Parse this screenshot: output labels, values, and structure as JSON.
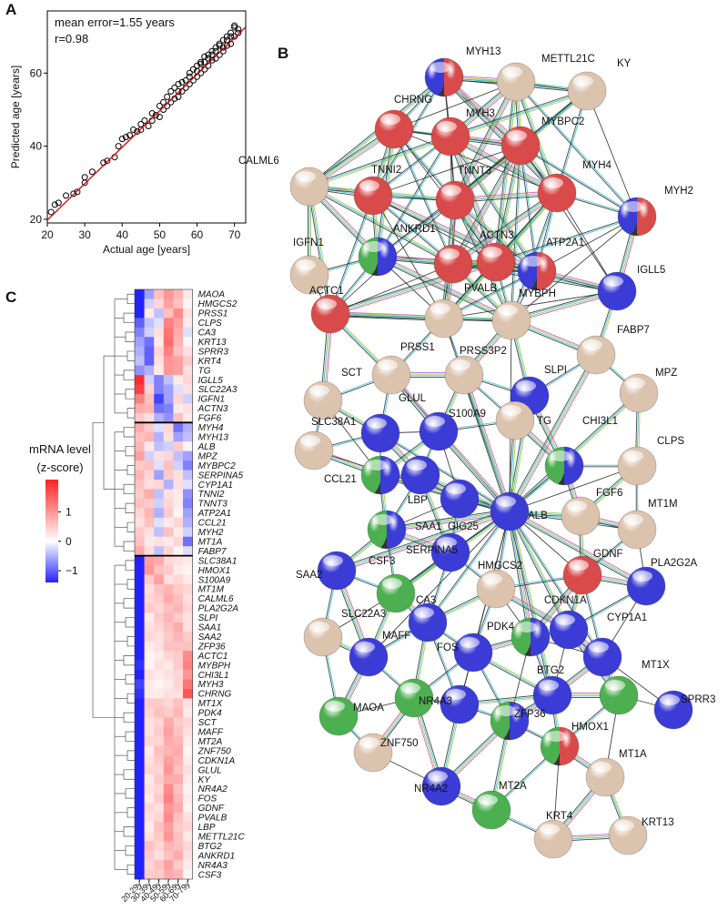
{
  "panel_labels": [
    "A",
    "B",
    "C"
  ],
  "chart_data": [
    {
      "type": "scatter",
      "x_label": "Actual age [years]",
      "y_label": "Predicted age [years]",
      "annotations": [
        "mean error=1.55 years",
        "r=0.98"
      ],
      "x": [
        21,
        22,
        23,
        25,
        27,
        28,
        30,
        30,
        32,
        35,
        36,
        38,
        39,
        40,
        41,
        42,
        43,
        44,
        45,
        45,
        46,
        47,
        48,
        48,
        49,
        50,
        50,
        51,
        51,
        52,
        52,
        53,
        53,
        54,
        54,
        55,
        55,
        55,
        56,
        56,
        57,
        57,
        58,
        58,
        58,
        59,
        59,
        60,
        60,
        60,
        61,
        61,
        61,
        62,
        62,
        62,
        63,
        63,
        63,
        64,
        64,
        64,
        65,
        65,
        65,
        66,
        66,
        66,
        67,
        67,
        67,
        68,
        68,
        68,
        69,
        69,
        69,
        70,
        70,
        70,
        71,
        71
      ],
      "y": [
        22,
        24,
        24.5,
        26.5,
        27,
        27.5,
        30,
        31.5,
        33,
        35.5,
        36,
        37,
        40,
        42,
        42.5,
        43,
        44.5,
        44,
        44.5,
        46,
        47,
        45.5,
        47,
        49,
        48.5,
        51,
        48,
        52,
        50,
        53.5,
        51,
        52,
        55,
        56,
        53,
        55,
        57,
        53.5,
        57.5,
        55,
        58,
        56,
        60,
        57,
        59,
        61,
        58,
        62,
        59,
        60.5,
        62.5,
        60,
        63,
        63,
        61,
        64.5,
        64,
        62,
        65,
        66,
        63.5,
        65,
        67,
        64,
        66,
        67.5,
        65,
        68,
        67,
        69,
        66,
        69,
        67.5,
        70,
        70,
        68,
        71,
        73,
        72.5,
        70,
        71,
        72
      ],
      "color": "#000000",
      "fit_line": {
        "x": [
          20,
          73
        ],
        "y": [
          19.8,
          72.6
        ],
        "color": "#e00000"
      },
      "xlim": [
        20,
        73
      ],
      "ylim": [
        19,
        77
      ],
      "xticks": [
        20,
        30,
        40,
        50,
        60,
        70
      ],
      "yticks": [
        20,
        40,
        60
      ]
    },
    {
      "type": "heatmap",
      "columns": [
        "20-29y",
        "30-39y",
        "40-49y",
        "50-59y",
        "60-69y",
        "70-79y"
      ],
      "rows": [
        "MAOA",
        "HMGCS2",
        "PRSS1",
        "CLPS",
        "CA3",
        "KRT13",
        "SPRR3",
        "KRT4",
        "TG",
        "IGLL5",
        "SLC22A3",
        "IGFN1",
        "ACTN3",
        "FGF6",
        "MYH4",
        "MYH13",
        "ALB",
        "MPZ",
        "MYBPC2",
        "SERPINA5",
        "CYP1A1",
        "TNNI2",
        "TNNT3",
        "ATP2A1",
        "CCL21",
        "MYH2",
        "MT1A",
        "FABP7",
        "SLC38A1",
        "HMOX1",
        "S100A9",
        "MT1M",
        "CALML6",
        "PLA2G2A",
        "SLPI",
        "SAA1",
        "SAA2",
        "ZFP36",
        "ACTC1",
        "MYBPH",
        "CHI3L1",
        "MYH3",
        "CHRNG",
        "MT1X",
        "PDK4",
        "SCT",
        "MAFF",
        "MT2A",
        "ZNF750",
        "CDKN1A",
        "GLUL",
        "KY",
        "NR4A2",
        "FOS",
        "GDNF",
        "PVALB",
        "LBP",
        "METTL21C",
        "BTG2",
        "ANKRD1",
        "NR4A3",
        "CSF3"
      ],
      "values": [
        [
          -1.6,
          -0.6,
          0.6,
          1.0,
          0.7,
          0.2
        ],
        [
          -1.5,
          -0.3,
          0.4,
          0.9,
          0.6,
          0.1
        ],
        [
          -1.7,
          0.2,
          -0.4,
          0.6,
          1.1,
          0.3
        ],
        [
          -1.0,
          -0.4,
          -0.2,
          1.2,
          0.9,
          0.2
        ],
        [
          -0.8,
          -0.3,
          0.3,
          1.3,
          0.8,
          -0.2
        ],
        [
          -0.6,
          -0.9,
          0.2,
          1.4,
          0.7,
          0.1
        ],
        [
          -0.5,
          -1.0,
          0.4,
          1.2,
          0.6,
          0.3
        ],
        [
          -0.4,
          -1.0,
          0.3,
          1.0,
          0.9,
          0.5
        ],
        [
          -0.7,
          -0.5,
          0.2,
          1.0,
          0.9,
          0.3
        ],
        [
          2.0,
          -0.3,
          -0.8,
          -0.4,
          0.2,
          0.4
        ],
        [
          1.8,
          0.4,
          -0.8,
          -0.6,
          -0.2,
          0.3
        ],
        [
          1.2,
          0.6,
          -1.2,
          -0.6,
          0.4,
          -0.3
        ],
        [
          0.8,
          0.7,
          -0.9,
          -0.8,
          0.2,
          0.3
        ],
        [
          0.5,
          0.3,
          -0.5,
          -0.7,
          0.6,
          0.2
        ],
        [
          0.8,
          0.5,
          -0.2,
          0.4,
          -0.9,
          -0.5
        ],
        [
          0.6,
          0.7,
          -0.5,
          0.3,
          -0.6,
          -0.4
        ],
        [
          0.7,
          0.2,
          -0.4,
          -0.3,
          0.5,
          0.1
        ],
        [
          0.9,
          -0.3,
          0.3,
          0.4,
          -0.4,
          -0.6
        ],
        [
          0.5,
          0.6,
          -0.2,
          0.6,
          -0.3,
          -0.8
        ],
        [
          0.7,
          0.4,
          -0.6,
          0.5,
          0.3,
          -0.4
        ],
        [
          0.6,
          0.3,
          0.4,
          -0.5,
          0.3,
          -0.2
        ],
        [
          0.5,
          0.8,
          -0.4,
          0.3,
          0.2,
          -0.7
        ],
        [
          0.6,
          0.5,
          -0.3,
          0.4,
          0.2,
          -0.8
        ],
        [
          0.4,
          0.7,
          -0.5,
          0.5,
          0.1,
          -0.6
        ],
        [
          0.3,
          0.6,
          -0.2,
          0.2,
          0.4,
          -0.5
        ],
        [
          0.5,
          0.3,
          -0.4,
          0.6,
          0.2,
          -0.3
        ],
        [
          0.6,
          0.2,
          0.3,
          0.2,
          0.4,
          -0.9
        ],
        [
          0.8,
          0.3,
          -0.4,
          0.4,
          0.1,
          -0.2
        ],
        [
          -1.8,
          0.9,
          0.8,
          0.4,
          0.3,
          0.2
        ],
        [
          -1.7,
          1.0,
          0.6,
          0.5,
          0.2,
          0.1
        ],
        [
          -1.5,
          0.5,
          0.9,
          0.3,
          0.4,
          0.2
        ],
        [
          -1.6,
          0.3,
          0.6,
          0.7,
          0.5,
          0.4
        ],
        [
          -1.7,
          0.4,
          0.5,
          0.8,
          0.6,
          0.3
        ],
        [
          -1.6,
          0.5,
          0.4,
          0.6,
          0.7,
          0.4
        ],
        [
          -1.4,
          0.2,
          0.5,
          0.7,
          0.5,
          0.3
        ],
        [
          -1.5,
          0.3,
          0.4,
          0.6,
          0.8,
          0.3
        ],
        [
          -1.5,
          0.4,
          0.3,
          0.5,
          0.7,
          0.5
        ],
        [
          -1.6,
          0.2,
          0.3,
          0.6,
          0.6,
          0.6
        ],
        [
          -1.4,
          0.1,
          0.2,
          0.4,
          0.5,
          1.1
        ],
        [
          -1.3,
          0.1,
          0.3,
          0.2,
          0.5,
          1.2
        ],
        [
          -1.5,
          0.3,
          0.2,
          0.3,
          0.4,
          1.0
        ],
        [
          -1.2,
          0.2,
          0.1,
          0.2,
          0.4,
          1.3
        ],
        [
          -1.3,
          0.2,
          0.2,
          0.3,
          0.3,
          1.6
        ],
        [
          -1.7,
          0.5,
          0.5,
          0.4,
          0.6,
          0.3
        ],
        [
          -1.6,
          0.4,
          0.6,
          0.5,
          0.7,
          0.2
        ],
        [
          -1.5,
          0.3,
          0.4,
          0.8,
          0.5,
          0.4
        ],
        [
          -1.6,
          0.3,
          0.5,
          0.9,
          0.6,
          0.3
        ],
        [
          -1.5,
          0.4,
          0.4,
          0.8,
          0.7,
          0.2
        ],
        [
          -1.4,
          0.2,
          0.6,
          0.7,
          0.8,
          0.1
        ],
        [
          -1.6,
          0.3,
          0.5,
          0.9,
          0.7,
          0.2
        ],
        [
          -1.5,
          0.4,
          0.4,
          1.0,
          0.6,
          0.3
        ],
        [
          -1.4,
          0.2,
          0.5,
          0.8,
          0.8,
          0.2
        ],
        [
          -1.5,
          0.3,
          0.4,
          1.1,
          0.6,
          0.1
        ],
        [
          -1.6,
          0.2,
          0.5,
          1.2,
          0.7,
          0.2
        ],
        [
          -1.5,
          0.4,
          0.3,
          1.0,
          0.8,
          0.1
        ],
        [
          -1.6,
          0.3,
          0.4,
          1.1,
          0.6,
          0.3
        ],
        [
          -1.4,
          0.2,
          0.6,
          0.9,
          0.5,
          0.4
        ],
        [
          -1.5,
          0.3,
          0.5,
          1.0,
          0.6,
          0.2
        ],
        [
          -1.7,
          0.6,
          0.4,
          0.7,
          0.6,
          0.4
        ],
        [
          -1.6,
          0.5,
          0.3,
          0.6,
          0.8,
          0.3
        ],
        [
          -1.5,
          0.4,
          0.6,
          0.9,
          0.5,
          0.2
        ],
        [
          -1.6,
          0.5,
          0.5,
          0.8,
          0.7,
          0.1
        ]
      ],
      "clim": [
        -1.4,
        2.1
      ],
      "low_color": "#2222ff",
      "mid_color": "#ffffff",
      "high_color": "#ff2222",
      "colorbar_title": [
        "mRNA level",
        "(z-score)"
      ],
      "colorbar_ticks": [
        1,
        0,
        {
          "value": -1,
          "label": "−1"
        }
      ]
    }
  ],
  "network": {
    "nodes": [
      {
        "label": "MYH13",
        "colors": [
          "#3b3bd6",
          "#d94a4a"
        ]
      },
      {
        "label": "METTL21C",
        "colors": [
          "#dcc3ae"
        ]
      },
      {
        "label": "KY",
        "colors": [
          "#dcc3ae"
        ]
      },
      {
        "label": "CHRNG",
        "colors": [
          "#d94a4a"
        ]
      },
      {
        "label": "MYH3",
        "colors": [
          "#d94a4a"
        ]
      },
      {
        "label": "MYBPC2",
        "colors": [
          "#d94a4a"
        ]
      },
      {
        "label": "CALML6",
        "colors": [
          "#dcc3ae"
        ]
      },
      {
        "label": "TNNI2",
        "colors": [
          "#d94a4a"
        ]
      },
      {
        "label": "TNNT3",
        "colors": [
          "#d94a4a"
        ]
      },
      {
        "label": "MYH4",
        "colors": [
          "#d94a4a"
        ]
      },
      {
        "label": "MYH2",
        "colors": [
          "#3b3bd6",
          "#d94a4a"
        ]
      },
      {
        "label": "IGFN1",
        "colors": [
          "#4caf50",
          "#3b3bd6"
        ]
      },
      {
        "label": "ANKRD1",
        "colors": [
          "#d94a4a"
        ]
      },
      {
        "label": "ACTN3",
        "colors": [
          "#d94a4a"
        ]
      },
      {
        "label": "ATP2A1",
        "colors": [
          "#3b3bd6",
          "#d94a4a"
        ]
      },
      {
        "label": "IGLL5",
        "colors": [
          "#3b3bd6"
        ]
      },
      {
        "label": "ACTC1",
        "colors": [
          "#d94a4a"
        ]
      },
      {
        "label": "PVALB",
        "colors": [
          "#dcc3ae"
        ]
      },
      {
        "label": "MYBPH",
        "colors": [
          "#dcc3ae"
        ]
      },
      {
        "label": "FABP7",
        "colors": [
          "#dcc3ae"
        ]
      },
      {
        "label": "MPZ",
        "colors": [
          "#dcc3ae"
        ]
      },
      {
        "label": "SCT",
        "colors": [
          "#dcc3ae"
        ]
      },
      {
        "label": "PRSS1",
        "colors": [
          "#dcc3ae"
        ]
      },
      {
        "label": "PRSS3P2",
        "colors": [
          "#dcc3ae"
        ]
      },
      {
        "label": "SLPI",
        "colors": [
          "#3b3bd6"
        ]
      },
      {
        "label": "SLC38A1",
        "colors": [
          "#3b3bd6"
        ]
      },
      {
        "label": "GLUL",
        "colors": [
          "#dcc3ae"
        ]
      },
      {
        "label": "S100A9",
        "colors": [
          "#3b3bd6"
        ]
      },
      {
        "label": "TG",
        "colors": [
          "#dcc3ae"
        ]
      },
      {
        "label": "CHI3L1",
        "colors": [
          "#4caf50",
          "#3b3bd6"
        ]
      },
      {
        "label": "CLPS",
        "colors": [
          "#dcc3ae"
        ]
      },
      {
        "label": "CCL21",
        "colors": [
          "#4caf50",
          "#3b3bd6"
        ]
      },
      {
        "label": "LBP",
        "colors": [
          "#3b3bd6"
        ]
      },
      {
        "label": "GIG25",
        "colors": [
          "#3b3bd6"
        ]
      },
      {
        "label": "ALB",
        "colors": [
          "#3b3bd6"
        ]
      },
      {
        "label": "SAA1",
        "colors": [
          "#4caf50",
          "#3b3bd6"
        ]
      },
      {
        "label": "FGF6",
        "colors": [
          "#dcc3ae"
        ]
      },
      {
        "label": "MT1M",
        "colors": [
          "#dcc3ae"
        ]
      },
      {
        "label": "SERPINA5",
        "colors": [
          "#3b3bd6"
        ]
      },
      {
        "label": "SAA2",
        "colors": [
          "#3b3bd6"
        ]
      },
      {
        "label": "CSF3",
        "colors": [
          "#4caf50"
        ]
      },
      {
        "label": "HMGCS2",
        "colors": [
          "#dcc3ae"
        ]
      },
      {
        "label": "GDNF",
        "colors": [
          "#d94a4a"
        ]
      },
      {
        "label": "PLA2G2A",
        "colors": [
          "#3b3bd6"
        ]
      },
      {
        "label": "SLC22A3",
        "colors": [
          "#dcc3ae"
        ]
      },
      {
        "label": "CA3",
        "colors": [
          "#3b3bd6"
        ]
      },
      {
        "label": "MAFF",
        "colors": [
          "#3b3bd6"
        ]
      },
      {
        "label": "PDK4",
        "colors": [
          "#4caf50",
          "#3b3bd6"
        ]
      },
      {
        "label": "CDKN1A",
        "colors": [
          "#3b3bd6"
        ]
      },
      {
        "label": "CYP1A1",
        "colors": [
          "#3b3bd6"
        ]
      },
      {
        "label": "FOS",
        "colors": [
          "#3b3bd6"
        ]
      },
      {
        "label": "MAOA",
        "colors": [
          "#4caf50"
        ]
      },
      {
        "label": "BTG2",
        "colors": [
          "#3b3bd6"
        ]
      },
      {
        "label": "MT1X",
        "colors": [
          "#4caf50"
        ]
      },
      {
        "label": "NR4A3",
        "colors": [
          "#3b3bd6"
        ]
      },
      {
        "label": "SPRR3",
        "colors": [
          "#3b3bd6"
        ]
      },
      {
        "label": "ZNF750",
        "colors": [
          "#dcc3ae"
        ]
      },
      {
        "label": "ZFP36",
        "colors": [
          "#4caf50",
          "#3b3bd6"
        ]
      },
      {
        "label": "HMOX1",
        "colors": [
          "#4caf50",
          "#d94a4a"
        ]
      },
      {
        "label": "MT1A",
        "colors": [
          "#dcc3ae"
        ]
      },
      {
        "label": "NR4A2",
        "colors": [
          "#3b3bd6"
        ]
      },
      {
        "label": "MT2A",
        "colors": [
          "#4caf50"
        ]
      },
      {
        "label": "KRT4",
        "colors": [
          "#dcc3ae"
        ]
      },
      {
        "label": "KRT13",
        "colors": [
          "#dcc3ae"
        ]
      }
    ]
  }
}
